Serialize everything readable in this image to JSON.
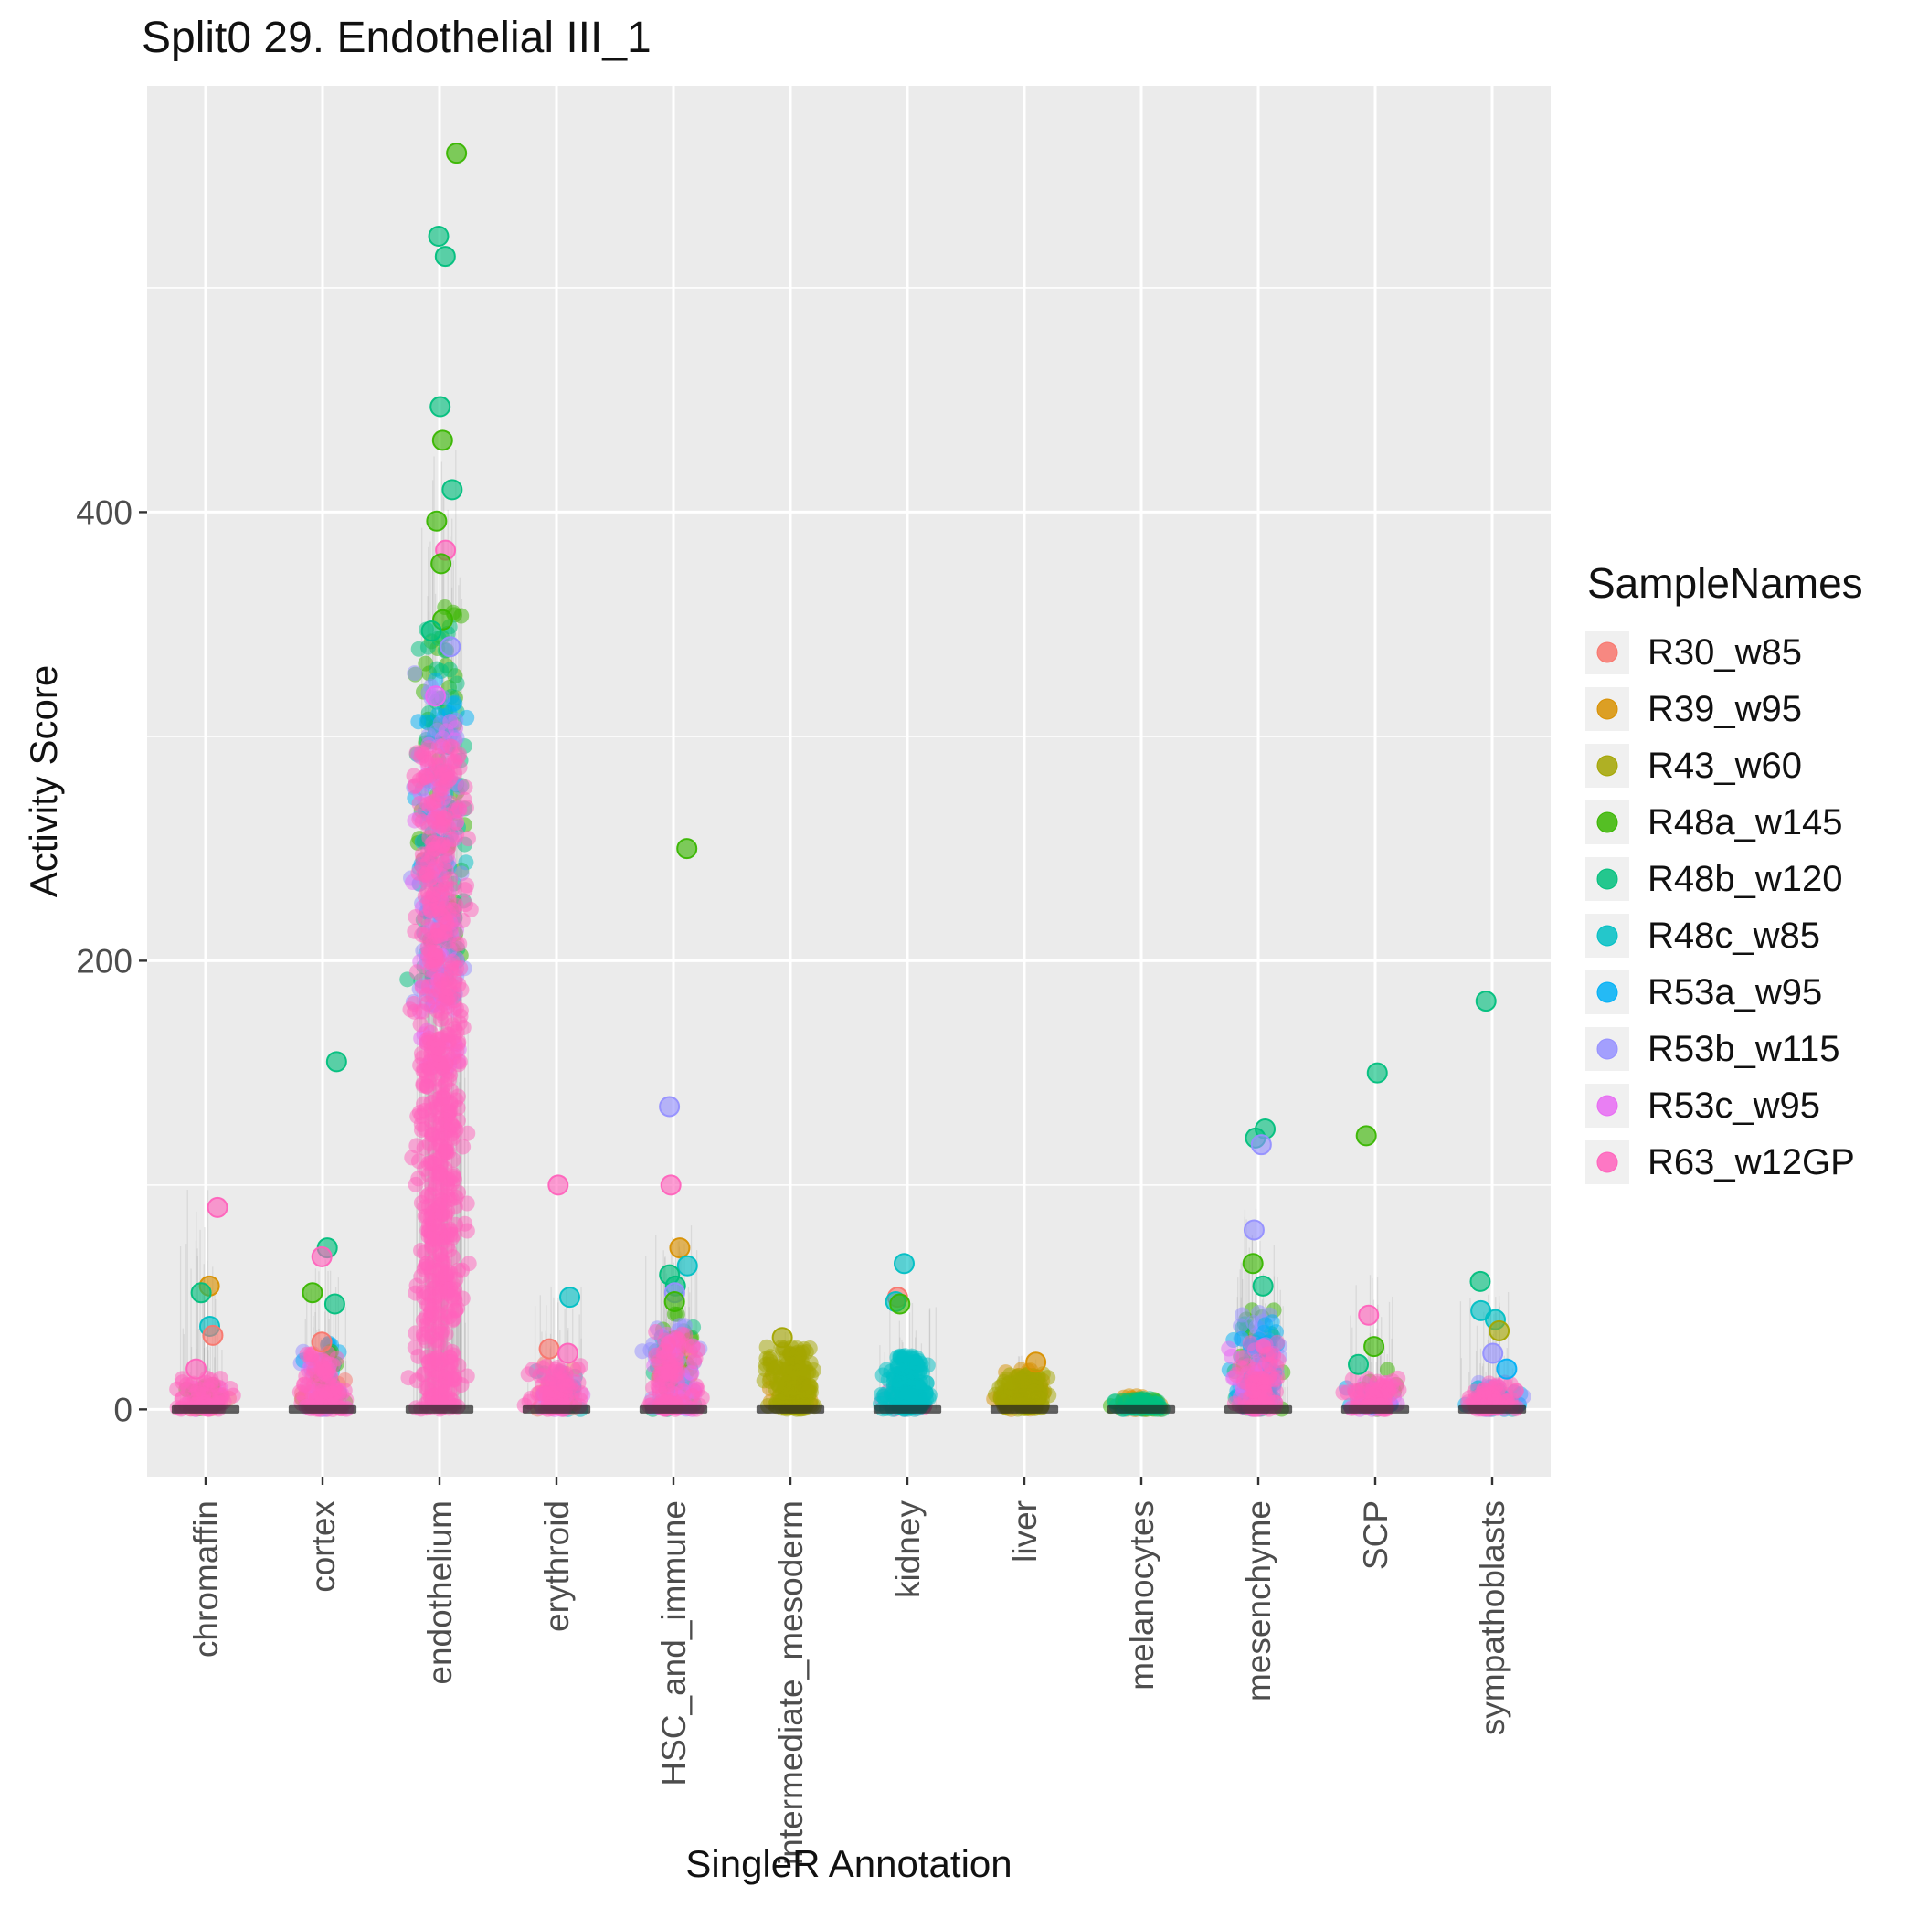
{
  "chart_data": {
    "type": "scatter",
    "title": "Split0 29. Endothelial III_1",
    "xlabel": "SingleR Annotation",
    "ylabel": "Activity Score",
    "ylim": [
      -30,
      590
    ],
    "yticks": [
      0,
      200,
      400
    ],
    "y_minor": [
      100,
      300,
      500
    ],
    "panel_bg": "#EBEBEB",
    "grid_color": "#FFFFFF",
    "legend": {
      "title": "SampleNames",
      "position": "right"
    },
    "categories": [
      "chromaffin",
      "cortex",
      "endothelium",
      "erythroid",
      "HSC_and_immune",
      "intermediate_mesoderm",
      "kidney",
      "liver",
      "melanocytes",
      "mesenchyme",
      "SCP",
      "sympathoblasts"
    ],
    "samples": [
      {
        "name": "R30_w85",
        "color": "#F8766D"
      },
      {
        "name": "R39_w95",
        "color": "#D89000"
      },
      {
        "name": "R43_w60",
        "color": "#A3A500"
      },
      {
        "name": "R48a_w145",
        "color": "#39B600"
      },
      {
        "name": "R48b_w120",
        "color": "#00BF7D"
      },
      {
        "name": "R48c_w85",
        "color": "#00BFC4"
      },
      {
        "name": "R53a_w95",
        "color": "#00B0F6"
      },
      {
        "name": "R53b_w115",
        "color": "#9590FF"
      },
      {
        "name": "R53c_w95",
        "color": "#E76BF3"
      },
      {
        "name": "R63_w12GP",
        "color": "#FF62BC"
      }
    ],
    "groups": [
      {
        "category": "chromaffin",
        "fuzz": {
          "n": 50,
          "ymax": 100
        },
        "clusters": [
          {
            "sample": "R53c_w95",
            "n": 18,
            "ymin": 0,
            "ymax": 10,
            "power": 1.5
          },
          {
            "sample": "R48a_w145",
            "n": 14,
            "ymin": 0,
            "ymax": 12,
            "power": 1.5
          },
          {
            "sample": "R30_w85",
            "n": 10,
            "ymin": 0,
            "ymax": 8,
            "power": 1.5
          },
          {
            "sample": "R63_w12GP",
            "n": 60,
            "ymin": 0,
            "ymax": 14,
            "power": 1.8
          }
        ],
        "outliers": [
          {
            "sample": "R63_w12GP",
            "y": 90
          },
          {
            "sample": "R39_w95",
            "y": 55
          },
          {
            "sample": "R48b_w120",
            "y": 52
          },
          {
            "sample": "R48c_w85",
            "y": 37
          },
          {
            "sample": "R30_w85",
            "y": 33
          },
          {
            "sample": "R63_w12GP",
            "y": 18
          }
        ]
      },
      {
        "category": "cortex",
        "fuzz": {
          "n": 60,
          "ymax": 70
        },
        "clusters": [
          {
            "sample": "R53b_w115",
            "n": 28,
            "ymin": 0,
            "ymax": 28,
            "power": 1.6
          },
          {
            "sample": "R53a_w95",
            "n": 18,
            "ymin": 0,
            "ymax": 30,
            "power": 1.6
          },
          {
            "sample": "R48a_w145",
            "n": 18,
            "ymin": 0,
            "ymax": 30,
            "power": 1.5
          },
          {
            "sample": "R30_w85",
            "n": 14,
            "ymin": 0,
            "ymax": 25,
            "power": 1.5
          },
          {
            "sample": "R53c_w95",
            "n": 22,
            "ymin": 0,
            "ymax": 22,
            "power": 1.6
          },
          {
            "sample": "R63_w12GP",
            "n": 70,
            "ymin": 0,
            "ymax": 25,
            "power": 1.8
          }
        ],
        "outliers": [
          {
            "sample": "R48b_w120",
            "y": 155
          },
          {
            "sample": "R48b_w120",
            "y": 72
          },
          {
            "sample": "R63_w12GP",
            "y": 68
          },
          {
            "sample": "R48a_w145",
            "y": 52
          },
          {
            "sample": "R48b_w120",
            "y": 47
          },
          {
            "sample": "R30_w85",
            "y": 30
          }
        ]
      },
      {
        "category": "endothelium",
        "fuzz": {
          "n": 150,
          "ymax": 430
        },
        "clusters": [
          {
            "sample": "R48a_w145",
            "n": 60,
            "ymin": 200,
            "ymax": 360,
            "power": 1.2
          },
          {
            "sample": "R48b_w120",
            "n": 70,
            "ymin": 190,
            "ymax": 350,
            "power": 1.2
          },
          {
            "sample": "R53a_w95",
            "n": 30,
            "ymin": 200,
            "ymax": 335,
            "power": 1.2
          },
          {
            "sample": "R48c_w85",
            "n": 30,
            "ymin": 180,
            "ymax": 300,
            "power": 1.2
          },
          {
            "sample": "R53b_w115",
            "n": 60,
            "ymin": 180,
            "ymax": 330,
            "power": 1.2
          },
          {
            "sample": "R53c_w95",
            "n": 80,
            "ymin": 150,
            "ymax": 312,
            "power": 1.2
          },
          {
            "sample": "R63_w12GP",
            "n": 650,
            "ymin": 0,
            "ymax": 296,
            "power": 1.15
          }
        ],
        "outliers": [
          {
            "sample": "R48a_w145",
            "y": 560
          },
          {
            "sample": "R48b_w120",
            "y": 523
          },
          {
            "sample": "R48b_w120",
            "y": 514
          },
          {
            "sample": "R48b_w120",
            "y": 447
          },
          {
            "sample": "R48a_w145",
            "y": 432
          },
          {
            "sample": "R48b_w120",
            "y": 410
          },
          {
            "sample": "R48a_w145",
            "y": 396
          },
          {
            "sample": "R63_w12GP",
            "y": 383
          },
          {
            "sample": "R48a_w145",
            "y": 377
          },
          {
            "sample": "R48a_w145",
            "y": 352
          },
          {
            "sample": "R48b_w120",
            "y": 347
          },
          {
            "sample": "R53b_w115",
            "y": 340
          },
          {
            "sample": "R53c_w95",
            "y": 318
          }
        ]
      },
      {
        "category": "erythroid",
        "fuzz": {
          "n": 45,
          "ymax": 55
        },
        "clusters": [
          {
            "sample": "R48c_w85",
            "n": 28,
            "ymin": 0,
            "ymax": 18,
            "power": 1.4
          },
          {
            "sample": "R30_w85",
            "n": 14,
            "ymin": 0,
            "ymax": 22,
            "power": 1.4
          },
          {
            "sample": "R53c_w95",
            "n": 18,
            "ymin": 0,
            "ymax": 15,
            "power": 1.5
          },
          {
            "sample": "R63_w12GP",
            "n": 70,
            "ymin": 0,
            "ymax": 20,
            "power": 1.7
          }
        ],
        "outliers": [
          {
            "sample": "R63_w12GP",
            "y": 100
          },
          {
            "sample": "R48c_w85",
            "y": 50
          },
          {
            "sample": "R30_w85",
            "y": 27
          },
          {
            "sample": "R63_w12GP",
            "y": 25
          }
        ]
      },
      {
        "category": "HSC_and_immune",
        "fuzz": {
          "n": 70,
          "ymax": 85
        },
        "clusters": [
          {
            "sample": "R48a_w145",
            "n": 24,
            "ymin": 5,
            "ymax": 45,
            "power": 1.2
          },
          {
            "sample": "R48b_w120",
            "n": 18,
            "ymin": 0,
            "ymax": 40,
            "power": 1.3
          },
          {
            "sample": "R39_w95",
            "n": 14,
            "ymin": 0,
            "ymax": 35,
            "power": 1.3
          },
          {
            "sample": "R53b_w115",
            "n": 38,
            "ymin": 0,
            "ymax": 40,
            "power": 1.5
          },
          {
            "sample": "R53c_w95",
            "n": 38,
            "ymin": 0,
            "ymax": 35,
            "power": 1.5
          },
          {
            "sample": "R63_w12GP",
            "n": 80,
            "ymin": 0,
            "ymax": 35,
            "power": 1.7
          }
        ],
        "outliers": [
          {
            "sample": "R48a_w145",
            "y": 250
          },
          {
            "sample": "R53b_w115",
            "y": 135
          },
          {
            "sample": "R63_w12GP",
            "y": 100
          },
          {
            "sample": "R39_w95",
            "y": 72
          },
          {
            "sample": "R48c_w85",
            "y": 64
          },
          {
            "sample": "R48b_w120",
            "y": 60
          },
          {
            "sample": "R48b_w120",
            "y": 55
          },
          {
            "sample": "R53b_w115",
            "y": 52
          },
          {
            "sample": "R48a_w145",
            "y": 48
          }
        ]
      },
      {
        "category": "intermediate_mesoderm",
        "fuzz": {
          "n": 25,
          "ymax": 35
        },
        "clusters": [
          {
            "sample": "R39_w95",
            "n": 14,
            "ymin": 0,
            "ymax": 14,
            "power": 1.3
          },
          {
            "sample": "R43_w60",
            "n": 150,
            "ymin": 0,
            "ymax": 28,
            "power": 1.25
          }
        ],
        "outliers": [
          {
            "sample": "R43_w60",
            "y": 32
          }
        ]
      },
      {
        "category": "kidney",
        "fuzz": {
          "n": 35,
          "ymax": 50
        },
        "clusters": [
          {
            "sample": "R63_w12GP",
            "n": 20,
            "ymin": 0,
            "ymax": 8,
            "power": 1.5
          },
          {
            "sample": "R48c_w85",
            "n": 150,
            "ymin": 0,
            "ymax": 24,
            "power": 1.25
          }
        ],
        "outliers": [
          {
            "sample": "R48c_w85",
            "y": 65
          },
          {
            "sample": "R30_w85",
            "y": 50
          },
          {
            "sample": "R48c_w85",
            "y": 48
          },
          {
            "sample": "R48a_w145",
            "y": 47
          }
        ]
      },
      {
        "category": "liver",
        "fuzz": {
          "n": 25,
          "ymax": 25
        },
        "clusters": [
          {
            "sample": "R39_w95",
            "n": 30,
            "ymin": 0,
            "ymax": 18,
            "power": 1.3
          },
          {
            "sample": "R43_w60",
            "n": 140,
            "ymin": 0,
            "ymax": 16,
            "power": 1.25
          }
        ],
        "outliers": [
          {
            "sample": "R39_w95",
            "y": 21
          }
        ]
      },
      {
        "category": "melanocytes",
        "fuzz": {
          "n": 10,
          "ymax": 8
        },
        "clusters": [
          {
            "sample": "R39_w95",
            "n": 24,
            "ymin": 0,
            "ymax": 6,
            "power": 1.2
          },
          {
            "sample": "R48a_w145",
            "n": 18,
            "ymin": 0,
            "ymax": 5,
            "power": 1.2
          },
          {
            "sample": "R48c_w85",
            "n": 18,
            "ymin": 0,
            "ymax": 4,
            "power": 1.2
          },
          {
            "sample": "R43_w60",
            "n": 14,
            "ymin": 0,
            "ymax": 5,
            "power": 1.2
          },
          {
            "sample": "R48b_w120",
            "n": 40,
            "ymin": 0,
            "ymax": 5,
            "power": 1.2
          }
        ],
        "outliers": []
      },
      {
        "category": "mesenchyme",
        "fuzz": {
          "n": 70,
          "ymax": 90
        },
        "clusters": [
          {
            "sample": "R48a_w145",
            "n": 28,
            "ymin": 0,
            "ymax": 50,
            "power": 1.3
          },
          {
            "sample": "R48b_w120",
            "n": 18,
            "ymin": 0,
            "ymax": 40,
            "power": 1.3
          },
          {
            "sample": "R53b_w115",
            "n": 42,
            "ymin": 0,
            "ymax": 45,
            "power": 1.4
          },
          {
            "sample": "R53a_w95",
            "n": 48,
            "ymin": 0,
            "ymax": 40,
            "power": 1.4
          },
          {
            "sample": "R53c_w95",
            "n": 28,
            "ymin": 0,
            "ymax": 30,
            "power": 1.5
          },
          {
            "sample": "R63_w12GP",
            "n": 70,
            "ymin": 0,
            "ymax": 30,
            "power": 1.6
          }
        ],
        "outliers": [
          {
            "sample": "R48b_w120",
            "y": 125
          },
          {
            "sample": "R48b_w120",
            "y": 121
          },
          {
            "sample": "R53b_w115",
            "y": 118
          },
          {
            "sample": "R53b_w115",
            "y": 80
          },
          {
            "sample": "R48a_w145",
            "y": 65
          },
          {
            "sample": "R48b_w120",
            "y": 55
          }
        ]
      },
      {
        "category": "SCP",
        "fuzz": {
          "n": 45,
          "ymax": 60
        },
        "clusters": [
          {
            "sample": "R48a_w145",
            "n": 14,
            "ymin": 0,
            "ymax": 18,
            "power": 1.4
          },
          {
            "sample": "R53a_w95",
            "n": 14,
            "ymin": 0,
            "ymax": 10,
            "power": 1.4
          },
          {
            "sample": "R53c_w95",
            "n": 22,
            "ymin": 0,
            "ymax": 12,
            "power": 1.5
          },
          {
            "sample": "R63_w12GP",
            "n": 60,
            "ymin": 0,
            "ymax": 14,
            "power": 1.6
          }
        ],
        "outliers": [
          {
            "sample": "R48b_w120",
            "y": 150
          },
          {
            "sample": "R48a_w145",
            "y": 122
          },
          {
            "sample": "R63_w12GP",
            "y": 42
          },
          {
            "sample": "R48a_w145",
            "y": 28
          },
          {
            "sample": "R48b_w120",
            "y": 20
          }
        ]
      },
      {
        "category": "sympathoblasts",
        "fuzz": {
          "n": 50,
          "ymax": 55
        },
        "clusters": [
          {
            "sample": "R53a_w95",
            "n": 24,
            "ymin": 0,
            "ymax": 10,
            "power": 1.4
          },
          {
            "sample": "R53b_w115",
            "n": 18,
            "ymin": 0,
            "ymax": 12,
            "power": 1.4
          },
          {
            "sample": "R48c_w85",
            "n": 14,
            "ymin": 0,
            "ymax": 10,
            "power": 1.4
          },
          {
            "sample": "R63_w12GP",
            "n": 70,
            "ymin": 0,
            "ymax": 12,
            "power": 1.6
          }
        ],
        "outliers": [
          {
            "sample": "R48b_w120",
            "y": 182
          },
          {
            "sample": "R48b_w120",
            "y": 57
          },
          {
            "sample": "R48c_w85",
            "y": 44
          },
          {
            "sample": "R48c_w85",
            "y": 40
          },
          {
            "sample": "R43_w60",
            "y": 35
          },
          {
            "sample": "R53b_w115",
            "y": 25
          },
          {
            "sample": "R53a_w95",
            "y": 18
          }
        ]
      }
    ]
  }
}
